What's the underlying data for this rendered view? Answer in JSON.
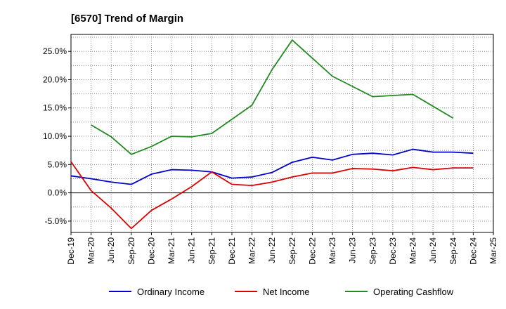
{
  "chart_data": {
    "type": "line",
    "title": "[6570]  Trend of Margin",
    "xlabel": "",
    "ylabel": "",
    "ylim": [
      -7.0,
      28.0
    ],
    "y_ticks": [
      {
        "value": 25,
        "label": "25.0%"
      },
      {
        "value": 20,
        "label": "20.0%"
      },
      {
        "value": 15,
        "label": "15.0%"
      },
      {
        "value": 10,
        "label": "10.0%"
      },
      {
        "value": 5,
        "label": "5.0%"
      },
      {
        "value": 0,
        "label": "0.0%"
      },
      {
        "value": -5,
        "label": "-5.0%"
      }
    ],
    "categories": [
      "Dec-19",
      "Mar-20",
      "Jun-20",
      "Sep-20",
      "Dec-20",
      "Mar-21",
      "Jun-21",
      "Sep-21",
      "Dec-21",
      "Mar-22",
      "Jun-22",
      "Sep-22",
      "Dec-22",
      "Mar-23",
      "Jun-23",
      "Sep-23",
      "Dec-23",
      "Mar-24",
      "Jun-24",
      "Sep-24",
      "Dec-24",
      "Mar-25"
    ],
    "grid": true,
    "legend_position": "bottom",
    "series": [
      {
        "name": "Ordinary Income",
        "color": "#0000cc",
        "values": [
          3.0,
          2.5,
          1.9,
          1.5,
          3.3,
          4.1,
          4.0,
          3.7,
          2.6,
          2.8,
          3.6,
          5.4,
          6.3,
          5.8,
          6.8,
          7.0,
          6.7,
          7.7,
          7.2,
          7.2,
          7.0,
          null
        ]
      },
      {
        "name": "Net Income",
        "color": "#dd0000",
        "values": [
          5.5,
          0.4,
          -2.7,
          -6.3,
          -3.1,
          -1.1,
          1.1,
          3.7,
          1.5,
          1.3,
          1.9,
          2.8,
          3.5,
          3.5,
          4.3,
          4.2,
          3.9,
          4.5,
          4.1,
          4.4,
          4.4,
          null
        ]
      },
      {
        "name": "Operating Cashflow",
        "color": "#228b22",
        "values": [
          null,
          12.0,
          9.9,
          6.8,
          8.2,
          10.0,
          9.9,
          10.5,
          13.0,
          15.5,
          21.8,
          27.0,
          23.8,
          20.6,
          18.8,
          17.0,
          17.2,
          17.4,
          15.3,
          13.2,
          null,
          null
        ]
      }
    ]
  }
}
